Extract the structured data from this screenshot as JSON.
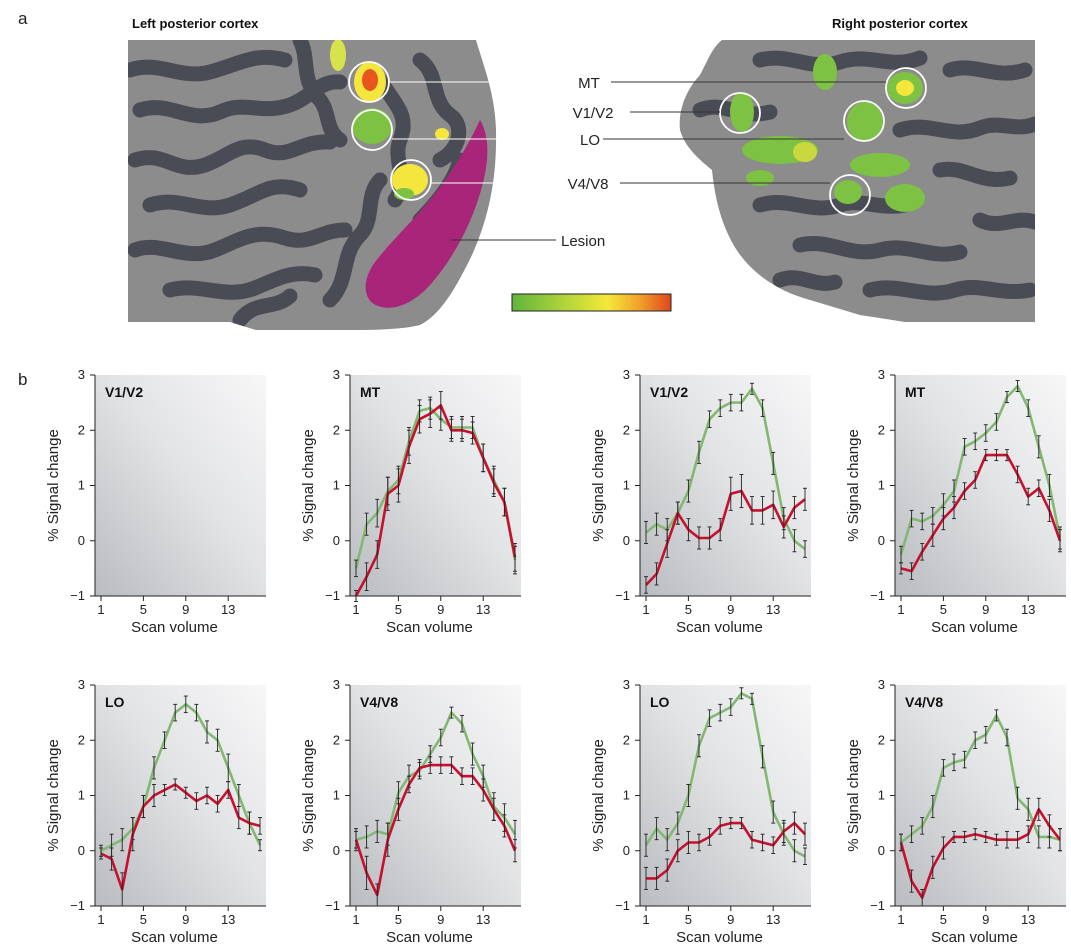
{
  "figure": {
    "panel_a_letter": "a",
    "panel_b_letter": "b",
    "left_hemisphere_title": "Left posterior cortex",
    "right_hemisphere_title": "Right posterior cortex",
    "callouts": [
      "MT",
      "V1/V2",
      "LO",
      "V4/V8",
      "Lesion"
    ],
    "colors": {
      "activation_green": "#7dc242",
      "activation_yellow": "#f4e63c",
      "activation_orange": "#e8561e",
      "lesion": "#a8257a",
      "cortex_light": "#8c8c8c",
      "cortex_dark": "#4a4c55",
      "series_green": "#82b872",
      "series_red": "#c8102e"
    }
  },
  "chart_data": [
    {
      "type": "line",
      "title": "V1/V2",
      "xlabel": "Scan volume",
      "ylabel": "% Signal change",
      "xlim": [
        1,
        16
      ],
      "ylim": [
        -1,
        3
      ],
      "xticks": [
        1,
        5,
        9,
        13
      ],
      "yticks": [
        -1,
        0,
        1,
        2,
        3
      ],
      "series": []
    },
    {
      "type": "line",
      "title": "MT",
      "xlabel": "Scan volume",
      "ylabel": "% Signal change",
      "xlim": [
        1,
        16
      ],
      "ylim": [
        -1,
        3
      ],
      "xticks": [
        1,
        5,
        9,
        13
      ],
      "yticks": [
        -1,
        0,
        1,
        2,
        3
      ],
      "x": [
        1,
        2,
        3,
        4,
        5,
        6,
        7,
        8,
        9,
        10,
        11,
        12,
        13,
        14,
        15,
        16
      ],
      "series": [
        {
          "color": "#82b872",
          "values": [
            -0.5,
            0.3,
            0.5,
            0.9,
            1.1,
            1.8,
            2.35,
            2.4,
            2.2,
            2.05,
            2.05,
            2.05,
            1.5,
            1.1,
            0.7,
            -0.35
          ],
          "errors": [
            0.15,
            0.2,
            0.25,
            0.25,
            0.25,
            0.25,
            0.2,
            0.2,
            0.2,
            0.2,
            0.2,
            0.2,
            0.25,
            0.25,
            0.25,
            0.25
          ]
        },
        {
          "color": "#c8102e",
          "values": [
            -1.0,
            -0.65,
            -0.25,
            0.85,
            1.0,
            1.7,
            2.2,
            2.3,
            2.45,
            2.0,
            2.0,
            1.95,
            1.5,
            1.05,
            0.7,
            -0.3
          ],
          "errors": [
            0.1,
            0.25,
            0.25,
            0.3,
            0.3,
            0.3,
            0.25,
            0.25,
            0.25,
            0.2,
            0.2,
            0.2,
            0.25,
            0.25,
            0.25,
            0.25
          ]
        }
      ]
    },
    {
      "type": "line",
      "title": "V1/V2",
      "xlabel": "Scan volume",
      "ylabel": "% Signal change",
      "xlim": [
        1,
        16
      ],
      "ylim": [
        -1,
        3
      ],
      "xticks": [
        1,
        5,
        9,
        13
      ],
      "yticks": [
        -1,
        0,
        1,
        2,
        3
      ],
      "x": [
        1,
        2,
        3,
        4,
        5,
        6,
        7,
        8,
        9,
        10,
        11,
        12,
        13,
        14,
        15,
        16
      ],
      "series": [
        {
          "color": "#82b872",
          "values": [
            0.15,
            0.3,
            0.2,
            0.5,
            0.9,
            1.6,
            2.2,
            2.4,
            2.5,
            2.5,
            2.75,
            2.4,
            1.4,
            0.4,
            0.0,
            -0.15
          ],
          "errors": [
            0.2,
            0.2,
            0.2,
            0.2,
            0.2,
            0.2,
            0.15,
            0.15,
            0.15,
            0.15,
            0.1,
            0.15,
            0.2,
            0.2,
            0.2,
            0.15
          ]
        },
        {
          "color": "#c8102e",
          "values": [
            -0.8,
            -0.6,
            -0.05,
            0.5,
            0.2,
            0.05,
            0.05,
            0.2,
            0.85,
            0.9,
            0.55,
            0.55,
            0.65,
            0.25,
            0.6,
            0.75
          ],
          "errors": [
            0.15,
            0.2,
            0.25,
            0.2,
            0.2,
            0.2,
            0.2,
            0.2,
            0.3,
            0.3,
            0.25,
            0.25,
            0.25,
            0.2,
            0.2,
            0.2
          ]
        }
      ]
    },
    {
      "type": "line",
      "title": "MT",
      "xlabel": "Scan volume",
      "ylabel": "% Signal change",
      "xlim": [
        1,
        16
      ],
      "ylim": [
        -1,
        3
      ],
      "xticks": [
        1,
        5,
        9,
        13
      ],
      "yticks": [
        -1,
        0,
        1,
        2,
        3
      ],
      "x": [
        1,
        2,
        3,
        4,
        5,
        6,
        7,
        8,
        9,
        10,
        11,
        12,
        13,
        14,
        15,
        16
      ],
      "series": [
        {
          "color": "#82b872",
          "values": [
            -0.25,
            0.4,
            0.35,
            0.45,
            0.65,
            0.9,
            1.7,
            1.8,
            1.95,
            2.15,
            2.6,
            2.8,
            2.4,
            1.7,
            1.0,
            0.05
          ],
          "errors": [
            0.15,
            0.15,
            0.15,
            0.15,
            0.2,
            0.2,
            0.15,
            0.15,
            0.15,
            0.15,
            0.1,
            0.1,
            0.15,
            0.2,
            0.2,
            0.2
          ]
        },
        {
          "color": "#c8102e",
          "values": [
            -0.5,
            -0.55,
            -0.2,
            0.1,
            0.4,
            0.6,
            0.9,
            1.1,
            1.55,
            1.55,
            1.55,
            1.2,
            0.8,
            0.95,
            0.55,
            0.0
          ],
          "errors": [
            0.1,
            0.15,
            0.15,
            0.2,
            0.2,
            0.2,
            0.15,
            0.15,
            0.1,
            0.1,
            0.1,
            0.15,
            0.15,
            0.15,
            0.2,
            0.2
          ]
        }
      ]
    },
    {
      "type": "line",
      "title": "LO",
      "xlabel": "Scan volume",
      "ylabel": "% Signal change",
      "xlim": [
        1,
        16
      ],
      "ylim": [
        -1,
        3
      ],
      "xticks": [
        1,
        5,
        9,
        13
      ],
      "yticks": [
        -1,
        0,
        1,
        2,
        3
      ],
      "x": [
        1,
        2,
        3,
        4,
        5,
        6,
        7,
        8,
        9,
        10,
        11,
        12,
        13,
        14,
        15,
        16
      ],
      "series": [
        {
          "color": "#82b872",
          "values": [
            0.0,
            0.1,
            0.2,
            0.4,
            0.8,
            1.5,
            2.0,
            2.5,
            2.65,
            2.5,
            2.15,
            2.0,
            1.5,
            1.0,
            0.5,
            0.1
          ],
          "errors": [
            0.1,
            0.2,
            0.2,
            0.2,
            0.2,
            0.2,
            0.15,
            0.15,
            0.15,
            0.15,
            0.2,
            0.2,
            0.25,
            0.2,
            0.2,
            0.1
          ]
        },
        {
          "color": "#c8102e",
          "values": [
            -0.05,
            -0.15,
            -0.7,
            0.3,
            0.8,
            1.0,
            1.1,
            1.2,
            1.05,
            0.9,
            1.0,
            0.85,
            1.1,
            0.6,
            0.5,
            0.45
          ],
          "errors": [
            0.1,
            0.2,
            0.3,
            0.3,
            0.2,
            0.2,
            0.1,
            0.1,
            0.1,
            0.15,
            0.15,
            0.15,
            0.15,
            0.2,
            0.2,
            0.15
          ]
        }
      ]
    },
    {
      "type": "line",
      "title": "V4/V8",
      "xlabel": "Scan volume",
      "ylabel": "% Signal change",
      "xlim": [
        1,
        16
      ],
      "ylim": [
        -1,
        3
      ],
      "xticks": [
        1,
        5,
        9,
        13
      ],
      "yticks": [
        -1,
        0,
        1,
        2,
        3
      ],
      "x": [
        1,
        2,
        3,
        4,
        5,
        6,
        7,
        8,
        9,
        10,
        11,
        12,
        13,
        14,
        15,
        16
      ],
      "series": [
        {
          "color": "#82b872",
          "values": [
            0.2,
            0.25,
            0.35,
            0.3,
            1.05,
            1.35,
            1.45,
            1.75,
            2.05,
            2.5,
            2.3,
            1.75,
            1.35,
            0.8,
            0.6,
            0.3
          ],
          "errors": [
            0.15,
            0.2,
            0.2,
            0.2,
            0.2,
            0.2,
            0.15,
            0.15,
            0.15,
            0.1,
            0.15,
            0.2,
            0.2,
            0.25,
            0.25,
            0.25
          ]
        },
        {
          "color": "#c8102e",
          "values": [
            0.2,
            -0.4,
            -0.8,
            0.2,
            0.75,
            1.2,
            1.5,
            1.55,
            1.55,
            1.55,
            1.35,
            1.35,
            1.1,
            0.75,
            0.45,
            0.0
          ],
          "errors": [
            0.2,
            0.3,
            0.2,
            0.3,
            0.2,
            0.15,
            0.15,
            0.15,
            0.15,
            0.15,
            0.15,
            0.15,
            0.2,
            0.2,
            0.2,
            0.2
          ]
        }
      ]
    },
    {
      "type": "line",
      "title": "LO",
      "xlabel": "Scan volume",
      "ylabel": "% Signal change",
      "xlim": [
        1,
        16
      ],
      "ylim": [
        -1,
        3
      ],
      "xticks": [
        1,
        5,
        9,
        13
      ],
      "yticks": [
        -1,
        0,
        1,
        2,
        3
      ],
      "x": [
        1,
        2,
        3,
        4,
        5,
        6,
        7,
        8,
        9,
        10,
        11,
        12,
        13,
        14,
        15,
        16
      ],
      "series": [
        {
          "color": "#82b872",
          "values": [
            0.1,
            0.4,
            0.2,
            0.5,
            1.0,
            1.9,
            2.4,
            2.5,
            2.6,
            2.85,
            2.75,
            1.7,
            0.7,
            0.3,
            0.0,
            -0.1
          ],
          "errors": [
            0.2,
            0.2,
            0.2,
            0.2,
            0.2,
            0.2,
            0.15,
            0.15,
            0.15,
            0.1,
            0.1,
            0.2,
            0.2,
            0.2,
            0.2,
            0.15
          ]
        },
        {
          "color": "#c8102e",
          "values": [
            -0.5,
            -0.5,
            -0.35,
            0.0,
            0.15,
            0.15,
            0.25,
            0.45,
            0.5,
            0.5,
            0.2,
            0.15,
            0.1,
            0.35,
            0.5,
            0.3
          ],
          "errors": [
            0.2,
            0.2,
            0.2,
            0.2,
            0.2,
            0.15,
            0.15,
            0.15,
            0.1,
            0.1,
            0.15,
            0.15,
            0.15,
            0.2,
            0.2,
            0.2
          ]
        }
      ]
    },
    {
      "type": "line",
      "title": "V4/V8",
      "xlabel": "Scan volume",
      "ylabel": "% Signal change",
      "xlim": [
        1,
        16
      ],
      "ylim": [
        -1,
        3
      ],
      "xticks": [
        1,
        5,
        9,
        13
      ],
      "yticks": [
        -1,
        0,
        1,
        2,
        3
      ],
      "x": [
        1,
        2,
        3,
        4,
        5,
        6,
        7,
        8,
        9,
        10,
        11,
        12,
        13,
        14,
        15,
        16
      ],
      "series": [
        {
          "color": "#82b872",
          "values": [
            0.15,
            0.3,
            0.45,
            0.8,
            1.5,
            1.6,
            1.65,
            2.0,
            2.1,
            2.45,
            2.05,
            0.95,
            0.75,
            0.25,
            0.25,
            0.2
          ],
          "errors": [
            0.15,
            0.15,
            0.15,
            0.2,
            0.15,
            0.15,
            0.15,
            0.15,
            0.15,
            0.1,
            0.15,
            0.2,
            0.2,
            0.2,
            0.2,
            0.2
          ]
        },
        {
          "color": "#c8102e",
          "values": [
            0.15,
            -0.55,
            -0.85,
            -0.3,
            0.05,
            0.25,
            0.25,
            0.3,
            0.25,
            0.2,
            0.2,
            0.2,
            0.3,
            0.75,
            0.45,
            0.2
          ],
          "errors": [
            0.15,
            0.2,
            0.15,
            0.2,
            0.2,
            0.1,
            0.1,
            0.1,
            0.1,
            0.1,
            0.15,
            0.15,
            0.15,
            0.2,
            0.2,
            0.2
          ]
        }
      ]
    }
  ]
}
